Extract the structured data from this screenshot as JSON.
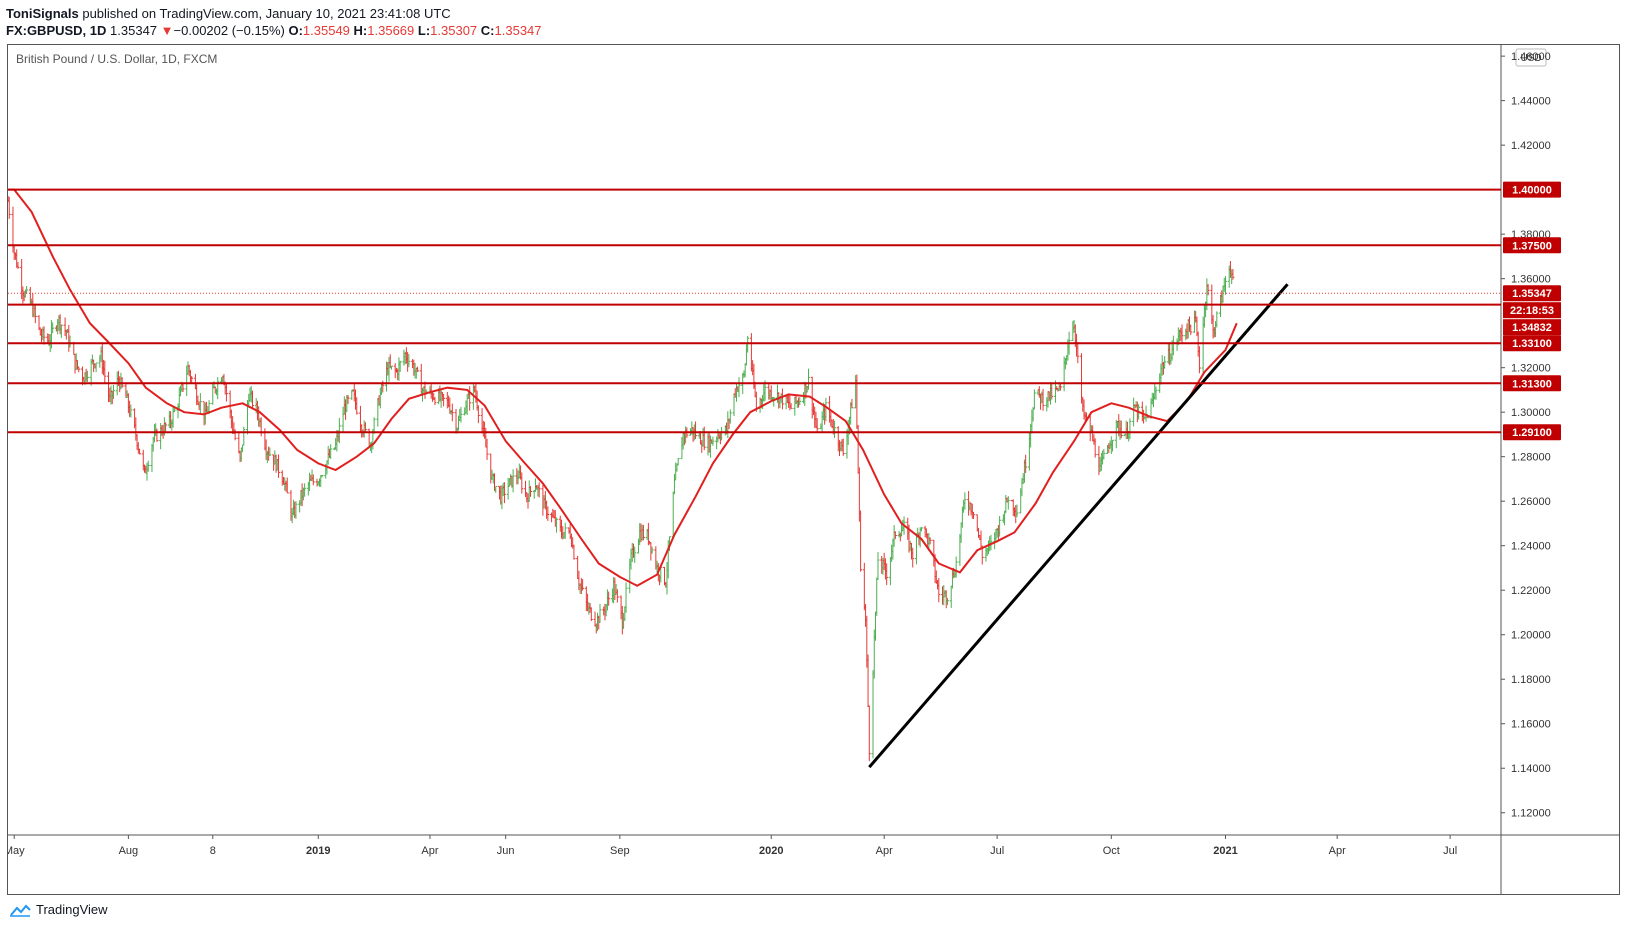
{
  "header": {
    "author": "ToniSignals",
    "published_text": "published on TradingView.com, January 10, 2021 23:41:08 UTC",
    "symbol": "FX:GBPUSD, 1D",
    "last": "1.35347",
    "change_arrow": "▼",
    "change": "−0.00202 (−0.15%)",
    "o_label": "O:",
    "o_value": "1.35549",
    "h_label": "H:",
    "h_value": "1.35669",
    "l_label": "L:",
    "l_value": "1.35307",
    "c_label": "C:",
    "c_value": "1.35347"
  },
  "footer": {
    "brand": "TradingView",
    "icon": "tradingview-cloud-icon"
  },
  "colors": {
    "up": "#26a69a",
    "up_bar": "#4caf50",
    "down": "#e53935",
    "level": "#c00000",
    "trend": "#000000",
    "ma": "#e0201f"
  },
  "chart_data": {
    "type": "ohlc",
    "title": "British Pound / U.S. Dollar, 1D, FXCM",
    "currency": "USD",
    "x_ticks": [
      "May",
      "Aug",
      "8",
      "2019",
      "Apr",
      "Jun",
      "Sep",
      "2020",
      "Apr",
      "Jul",
      "Oct",
      "2021",
      "Apr",
      "Jul"
    ],
    "x_tick_dates": [
      "2018-05-01",
      "2018-08-01",
      "2018-10-08",
      "2019-01-01",
      "2019-04-01",
      "2019-06-01",
      "2019-09-01",
      "2020-01-01",
      "2020-04-01",
      "2020-07-01",
      "2020-10-01",
      "2021-01-01",
      "2021-04-01",
      "2021-07-01"
    ],
    "y_ticks": [
      "1.46000",
      "1.44000",
      "1.42000",
      "1.38000",
      "1.36000",
      "1.32000",
      "1.30000",
      "1.28000",
      "1.26000",
      "1.24000",
      "1.22000",
      "1.20000",
      "1.18000",
      "1.16000",
      "1.14000",
      "1.12000"
    ],
    "ylim": [
      1.11,
      1.465
    ],
    "xlim": [
      "2018-04-26",
      "2021-08-11"
    ],
    "horizontal_levels": [
      "1.40000",
      "1.37500",
      "1.34832",
      "1.33100",
      "1.31300",
      "1.29100"
    ],
    "last_price": "1.35347",
    "countdown": "22:18:53",
    "trendline": {
      "from": {
        "date": "2020-03-20",
        "value": 1.1405
      },
      "to": {
        "date": "2021-02-20",
        "value": 1.3575
      }
    },
    "moving_average_color": "#e0201f",
    "series": [
      {
        "date": "2018-04-26",
        "close": 1.395
      },
      {
        "date": "2018-05-01",
        "close": 1.372
      },
      {
        "date": "2018-05-08",
        "close": 1.355
      },
      {
        "date": "2018-05-15",
        "close": 1.348
      },
      {
        "date": "2018-05-22",
        "close": 1.335
      },
      {
        "date": "2018-05-29",
        "close": 1.332
      },
      {
        "date": "2018-06-05",
        "close": 1.342
      },
      {
        "date": "2018-06-12",
        "close": 1.336
      },
      {
        "date": "2018-06-19",
        "close": 1.322
      },
      {
        "date": "2018-06-26",
        "close": 1.316
      },
      {
        "date": "2018-07-03",
        "close": 1.322
      },
      {
        "date": "2018-07-10",
        "close": 1.325
      },
      {
        "date": "2018-07-17",
        "close": 1.305
      },
      {
        "date": "2018-07-24",
        "close": 1.315
      },
      {
        "date": "2018-07-31",
        "close": 1.305
      },
      {
        "date": "2018-08-07",
        "close": 1.29
      },
      {
        "date": "2018-08-14",
        "close": 1.272
      },
      {
        "date": "2018-08-21",
        "close": 1.288
      },
      {
        "date": "2018-08-28",
        "close": 1.292
      },
      {
        "date": "2018-09-04",
        "close": 1.296
      },
      {
        "date": "2018-09-11",
        "close": 1.306
      },
      {
        "date": "2018-09-18",
        "close": 1.32
      },
      {
        "date": "2018-09-25",
        "close": 1.308
      },
      {
        "date": "2018-10-02",
        "close": 1.298
      },
      {
        "date": "2018-10-09",
        "close": 1.31
      },
      {
        "date": "2018-10-16",
        "close": 1.318
      },
      {
        "date": "2018-10-23",
        "close": 1.296
      },
      {
        "date": "2018-10-30",
        "close": 1.278
      },
      {
        "date": "2018-11-06",
        "close": 1.308
      },
      {
        "date": "2018-11-13",
        "close": 1.3
      },
      {
        "date": "2018-11-20",
        "close": 1.284
      },
      {
        "date": "2018-11-27",
        "close": 1.278
      },
      {
        "date": "2018-12-04",
        "close": 1.27
      },
      {
        "date": "2018-12-11",
        "close": 1.253
      },
      {
        "date": "2018-12-18",
        "close": 1.262
      },
      {
        "date": "2018-12-25",
        "close": 1.268
      },
      {
        "date": "2019-01-01",
        "close": 1.27
      },
      {
        "date": "2019-01-08",
        "close": 1.278
      },
      {
        "date": "2019-01-15",
        "close": 1.285
      },
      {
        "date": "2019-01-22",
        "close": 1.302
      },
      {
        "date": "2019-01-29",
        "close": 1.308
      },
      {
        "date": "2019-02-05",
        "close": 1.294
      },
      {
        "date": "2019-02-12",
        "close": 1.286
      },
      {
        "date": "2019-02-19",
        "close": 1.306
      },
      {
        "date": "2019-02-26",
        "close": 1.32
      },
      {
        "date": "2019-03-05",
        "close": 1.318
      },
      {
        "date": "2019-03-12",
        "close": 1.326
      },
      {
        "date": "2019-03-19",
        "close": 1.32
      },
      {
        "date": "2019-03-26",
        "close": 1.31
      },
      {
        "date": "2019-04-02",
        "close": 1.308
      },
      {
        "date": "2019-04-09",
        "close": 1.306
      },
      {
        "date": "2019-04-16",
        "close": 1.304
      },
      {
        "date": "2019-04-23",
        "close": 1.294
      },
      {
        "date": "2019-04-30",
        "close": 1.304
      },
      {
        "date": "2019-05-07",
        "close": 1.31
      },
      {
        "date": "2019-05-14",
        "close": 1.29
      },
      {
        "date": "2019-05-21",
        "close": 1.27
      },
      {
        "date": "2019-05-28",
        "close": 1.262
      },
      {
        "date": "2019-06-04",
        "close": 1.268
      },
      {
        "date": "2019-06-11",
        "close": 1.272
      },
      {
        "date": "2019-06-18",
        "close": 1.262
      },
      {
        "date": "2019-06-25",
        "close": 1.268
      },
      {
        "date": "2019-07-02",
        "close": 1.258
      },
      {
        "date": "2019-07-09",
        "close": 1.252
      },
      {
        "date": "2019-07-16",
        "close": 1.246
      },
      {
        "date": "2019-07-23",
        "close": 1.246
      },
      {
        "date": "2019-07-30",
        "close": 1.224
      },
      {
        "date": "2019-08-06",
        "close": 1.212
      },
      {
        "date": "2019-08-13",
        "close": 1.206
      },
      {
        "date": "2019-08-20",
        "close": 1.212
      },
      {
        "date": "2019-08-27",
        "close": 1.222
      },
      {
        "date": "2019-09-03",
        "close": 1.206
      },
      {
        "date": "2019-09-10",
        "close": 1.234
      },
      {
        "date": "2019-09-17",
        "close": 1.246
      },
      {
        "date": "2019-09-24",
        "close": 1.244
      },
      {
        "date": "2019-10-01",
        "close": 1.23
      },
      {
        "date": "2019-10-08",
        "close": 1.224
      },
      {
        "date": "2019-10-15",
        "close": 1.268
      },
      {
        "date": "2019-10-22",
        "close": 1.29
      },
      {
        "date": "2019-10-29",
        "close": 1.292
      },
      {
        "date": "2019-11-05",
        "close": 1.288
      },
      {
        "date": "2019-11-12",
        "close": 1.286
      },
      {
        "date": "2019-11-19",
        "close": 1.29
      },
      {
        "date": "2019-11-26",
        "close": 1.292
      },
      {
        "date": "2019-12-03",
        "close": 1.31
      },
      {
        "date": "2019-12-10",
        "close": 1.316
      },
      {
        "date": "2019-12-13",
        "close": 1.334
      },
      {
        "date": "2019-12-20",
        "close": 1.302
      },
      {
        "date": "2019-12-27",
        "close": 1.31
      },
      {
        "date": "2020-01-03",
        "close": 1.308
      },
      {
        "date": "2020-01-10",
        "close": 1.306
      },
      {
        "date": "2020-01-17",
        "close": 1.302
      },
      {
        "date": "2020-01-24",
        "close": 1.306
      },
      {
        "date": "2020-01-31",
        "close": 1.314
      },
      {
        "date": "2020-02-07",
        "close": 1.29
      },
      {
        "date": "2020-02-14",
        "close": 1.302
      },
      {
        "date": "2020-02-21",
        "close": 1.292
      },
      {
        "date": "2020-02-28",
        "close": 1.282
      },
      {
        "date": "2020-03-06",
        "close": 1.304
      },
      {
        "date": "2020-03-09",
        "close": 1.314
      },
      {
        "date": "2020-03-13",
        "close": 1.232
      },
      {
        "date": "2020-03-17",
        "close": 1.206
      },
      {
        "date": "2020-03-20",
        "close": 1.149
      },
      {
        "date": "2020-03-27",
        "close": 1.234
      },
      {
        "date": "2020-04-03",
        "close": 1.228
      },
      {
        "date": "2020-04-10",
        "close": 1.246
      },
      {
        "date": "2020-04-17",
        "close": 1.248
      },
      {
        "date": "2020-04-24",
        "close": 1.236
      },
      {
        "date": "2020-05-01",
        "close": 1.25
      },
      {
        "date": "2020-05-08",
        "close": 1.24
      },
      {
        "date": "2020-05-15",
        "close": 1.218
      },
      {
        "date": "2020-05-22",
        "close": 1.218
      },
      {
        "date": "2020-05-29",
        "close": 1.232
      },
      {
        "date": "2020-06-05",
        "close": 1.262
      },
      {
        "date": "2020-06-12",
        "close": 1.256
      },
      {
        "date": "2020-06-19",
        "close": 1.236
      },
      {
        "date": "2020-06-26",
        "close": 1.24
      },
      {
        "date": "2020-07-03",
        "close": 1.25
      },
      {
        "date": "2020-07-10",
        "close": 1.262
      },
      {
        "date": "2020-07-17",
        "close": 1.256
      },
      {
        "date": "2020-07-24",
        "close": 1.278
      },
      {
        "date": "2020-07-31",
        "close": 1.308
      },
      {
        "date": "2020-08-07",
        "close": 1.306
      },
      {
        "date": "2020-08-14",
        "close": 1.308
      },
      {
        "date": "2020-08-21",
        "close": 1.31
      },
      {
        "date": "2020-08-28",
        "close": 1.334
      },
      {
        "date": "2020-09-01",
        "close": 1.34
      },
      {
        "date": "2020-09-08",
        "close": 1.3
      },
      {
        "date": "2020-09-15",
        "close": 1.29
      },
      {
        "date": "2020-09-22",
        "close": 1.274
      },
      {
        "date": "2020-09-29",
        "close": 1.286
      },
      {
        "date": "2020-10-06",
        "close": 1.294
      },
      {
        "date": "2020-10-13",
        "close": 1.29
      },
      {
        "date": "2020-10-20",
        "close": 1.302
      },
      {
        "date": "2020-10-27",
        "close": 1.296
      },
      {
        "date": "2020-11-03",
        "close": 1.304
      },
      {
        "date": "2020-11-10",
        "close": 1.32
      },
      {
        "date": "2020-11-17",
        "close": 1.326
      },
      {
        "date": "2020-11-24",
        "close": 1.334
      },
      {
        "date": "2020-12-01",
        "close": 1.338
      },
      {
        "date": "2020-12-08",
        "close": 1.34
      },
      {
        "date": "2020-12-11",
        "close": 1.322
      },
      {
        "date": "2020-12-17",
        "close": 1.358
      },
      {
        "date": "2020-12-22",
        "close": 1.336
      },
      {
        "date": "2020-12-29",
        "close": 1.352
      },
      {
        "date": "2021-01-04",
        "close": 1.366
      },
      {
        "date": "2021-01-06",
        "close": 1.362
      },
      {
        "date": "2021-01-08",
        "close": 1.3535
      }
    ],
    "moving_average": [
      {
        "date": "2018-04-26",
        "value": 1.4
      },
      {
        "date": "2018-05-01",
        "value": 1.4
      },
      {
        "date": "2018-05-15",
        "value": 1.39
      },
      {
        "date": "2018-06-01",
        "value": 1.37
      },
      {
        "date": "2018-06-15",
        "value": 1.355
      },
      {
        "date": "2018-07-01",
        "value": 1.34
      },
      {
        "date": "2018-07-15",
        "value": 1.332
      },
      {
        "date": "2018-08-01",
        "value": 1.322
      },
      {
        "date": "2018-08-15",
        "value": 1.311
      },
      {
        "date": "2018-09-01",
        "value": 1.304
      },
      {
        "date": "2018-09-15",
        "value": 1.3
      },
      {
        "date": "2018-10-01",
        "value": 1.299
      },
      {
        "date": "2018-10-15",
        "value": 1.302
      },
      {
        "date": "2018-11-01",
        "value": 1.304
      },
      {
        "date": "2018-11-15",
        "value": 1.3
      },
      {
        "date": "2018-12-01",
        "value": 1.292
      },
      {
        "date": "2018-12-15",
        "value": 1.283
      },
      {
        "date": "2019-01-01",
        "value": 1.277
      },
      {
        "date": "2019-01-15",
        "value": 1.274
      },
      {
        "date": "2019-02-01",
        "value": 1.28
      },
      {
        "date": "2019-02-15",
        "value": 1.286
      },
      {
        "date": "2019-03-01",
        "value": 1.297
      },
      {
        "date": "2019-03-15",
        "value": 1.306
      },
      {
        "date": "2019-04-01",
        "value": 1.309
      },
      {
        "date": "2019-04-15",
        "value": 1.311
      },
      {
        "date": "2019-05-01",
        "value": 1.31
      },
      {
        "date": "2019-05-15",
        "value": 1.303
      },
      {
        "date": "2019-06-01",
        "value": 1.287
      },
      {
        "date": "2019-06-15",
        "value": 1.278
      },
      {
        "date": "2019-07-01",
        "value": 1.268
      },
      {
        "date": "2019-07-15",
        "value": 1.257
      },
      {
        "date": "2019-08-01",
        "value": 1.243
      },
      {
        "date": "2019-08-15",
        "value": 1.232
      },
      {
        "date": "2019-09-01",
        "value": 1.226
      },
      {
        "date": "2019-09-15",
        "value": 1.222
      },
      {
        "date": "2019-10-01",
        "value": 1.227
      },
      {
        "date": "2019-10-15",
        "value": 1.245
      },
      {
        "date": "2019-11-01",
        "value": 1.262
      },
      {
        "date": "2019-11-15",
        "value": 1.277
      },
      {
        "date": "2019-12-01",
        "value": 1.29
      },
      {
        "date": "2019-12-15",
        "value": 1.3
      },
      {
        "date": "2020-01-01",
        "value": 1.305
      },
      {
        "date": "2020-01-15",
        "value": 1.308
      },
      {
        "date": "2020-02-01",
        "value": 1.307
      },
      {
        "date": "2020-02-15",
        "value": 1.302
      },
      {
        "date": "2020-03-01",
        "value": 1.296
      },
      {
        "date": "2020-03-15",
        "value": 1.283
      },
      {
        "date": "2020-04-01",
        "value": 1.263
      },
      {
        "date": "2020-04-15",
        "value": 1.25
      },
      {
        "date": "2020-05-01",
        "value": 1.243
      },
      {
        "date": "2020-05-15",
        "value": 1.232
      },
      {
        "date": "2020-06-01",
        "value": 1.228
      },
      {
        "date": "2020-06-15",
        "value": 1.238
      },
      {
        "date": "2020-07-01",
        "value": 1.242
      },
      {
        "date": "2020-07-15",
        "value": 1.246
      },
      {
        "date": "2020-08-01",
        "value": 1.259
      },
      {
        "date": "2020-08-15",
        "value": 1.273
      },
      {
        "date": "2020-09-01",
        "value": 1.287
      },
      {
        "date": "2020-09-15",
        "value": 1.3
      },
      {
        "date": "2020-10-01",
        "value": 1.304
      },
      {
        "date": "2020-10-15",
        "value": 1.302
      },
      {
        "date": "2020-11-01",
        "value": 1.298
      },
      {
        "date": "2020-11-15",
        "value": 1.296
      },
      {
        "date": "2020-12-01",
        "value": 1.305
      },
      {
        "date": "2020-12-15",
        "value": 1.318
      },
      {
        "date": "2021-01-01",
        "value": 1.328
      },
      {
        "date": "2021-01-10",
        "value": 1.34
      }
    ]
  }
}
